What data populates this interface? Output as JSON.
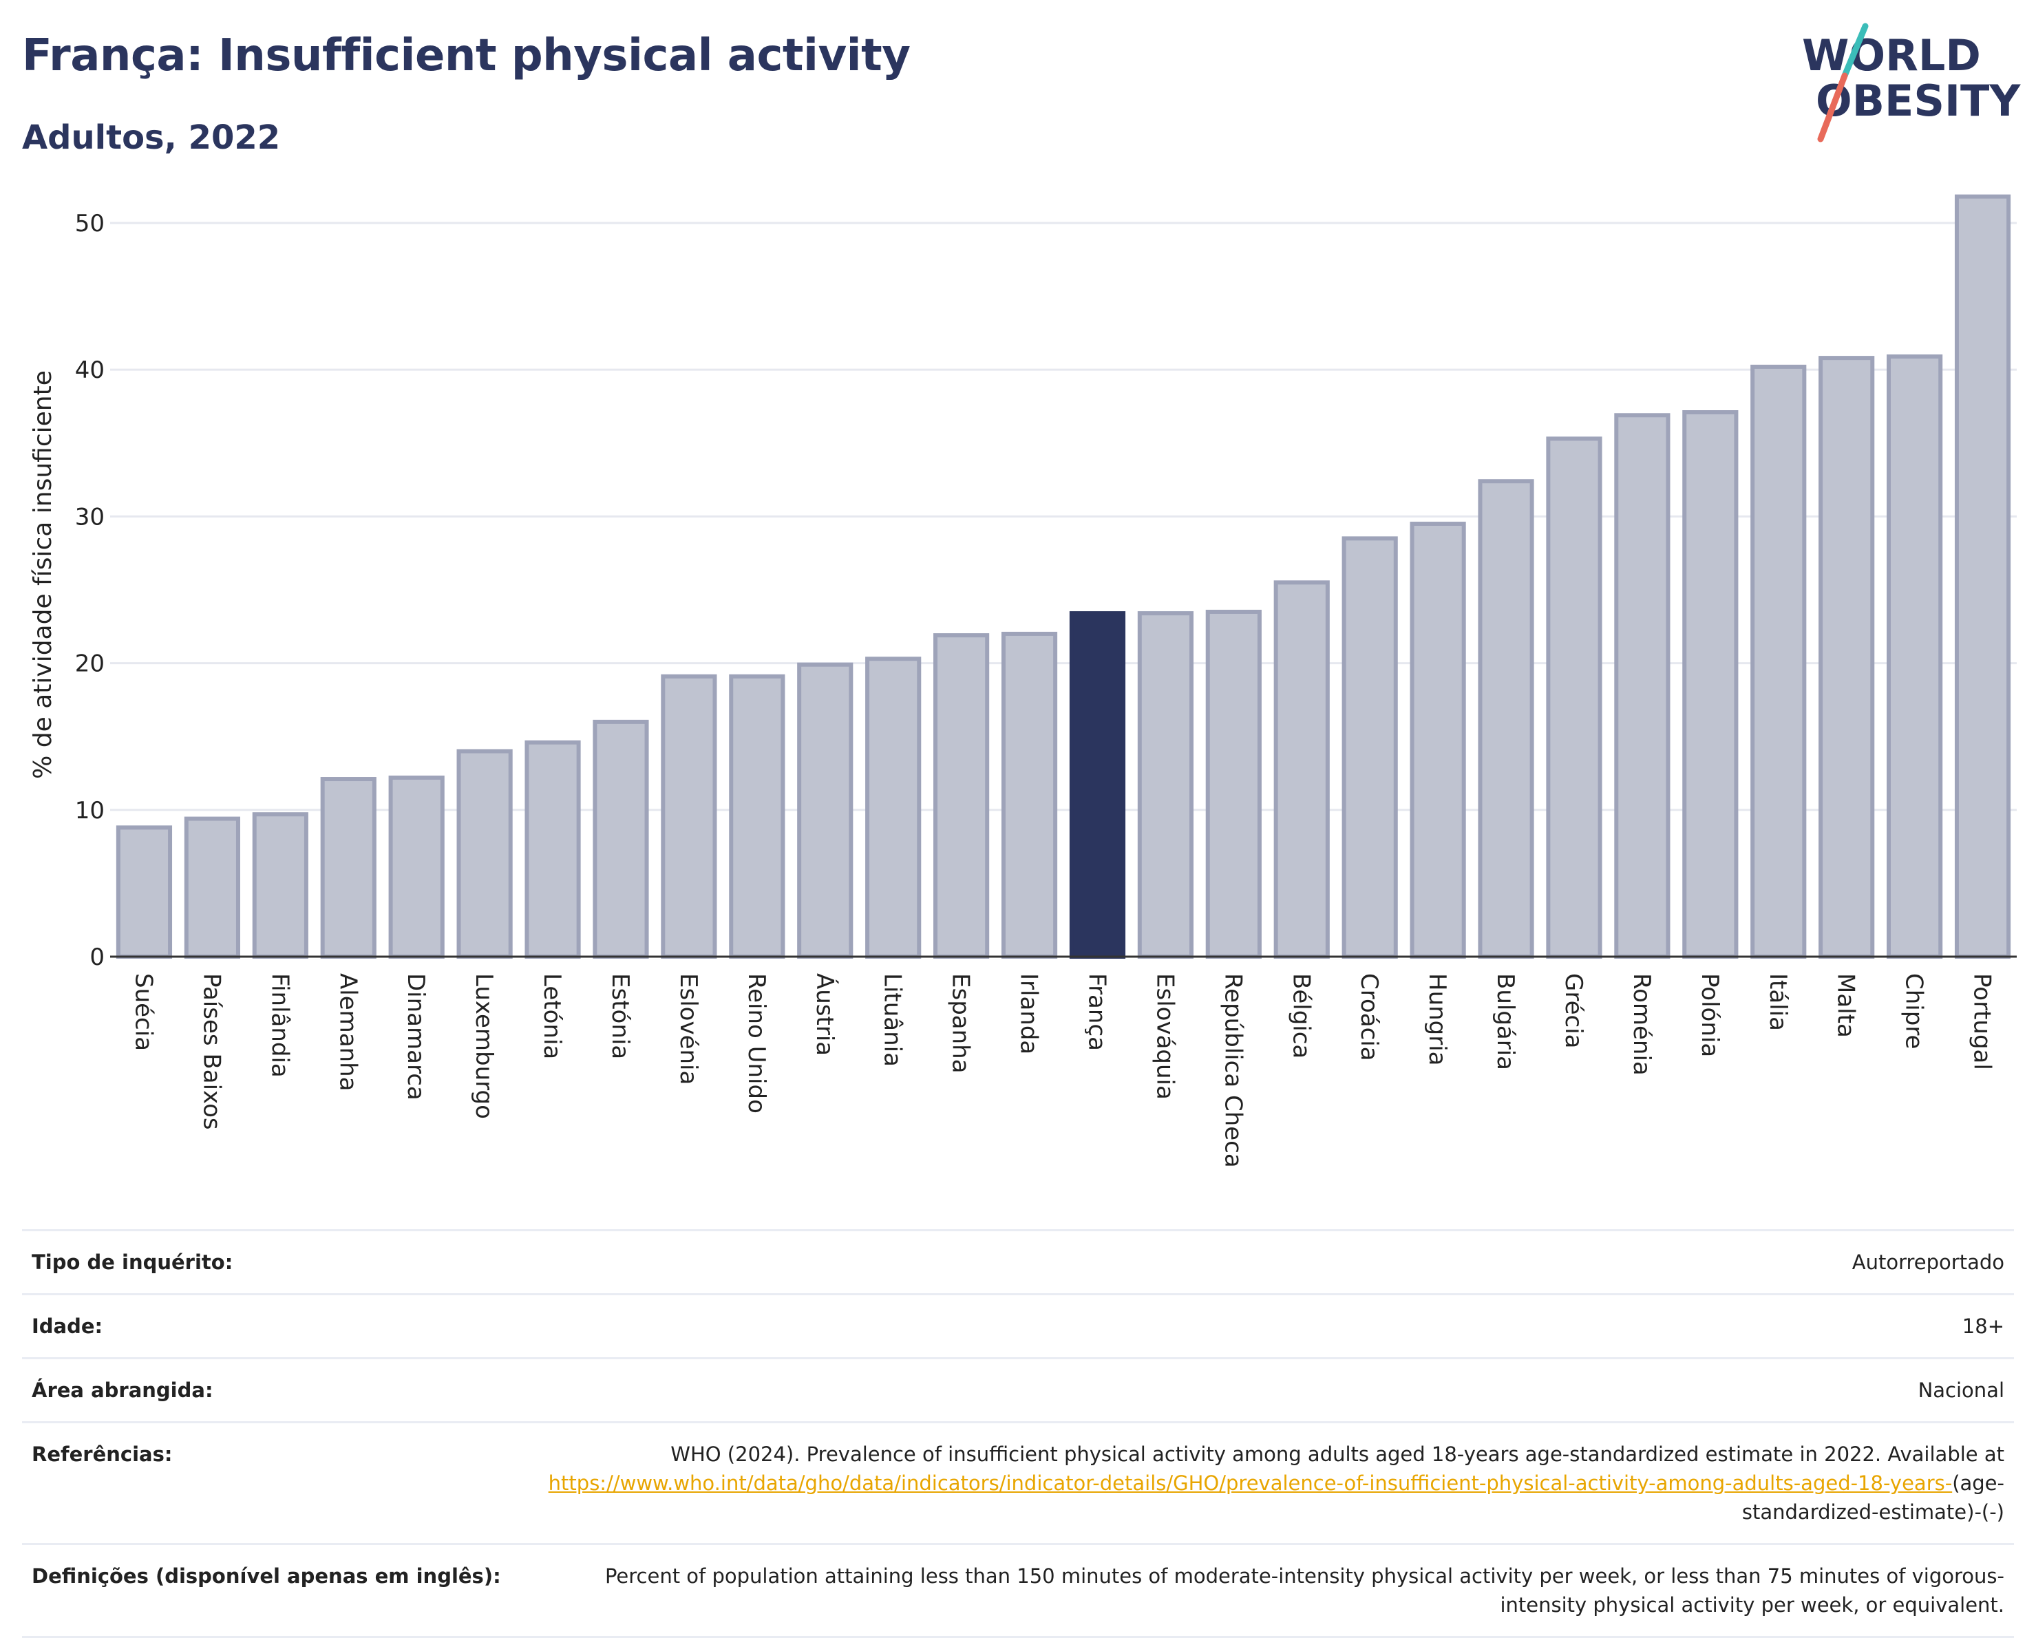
{
  "header": {
    "title": "França: Insufficient physical activity",
    "subtitle": "Adultos, 2022"
  },
  "logo": {
    "line1": "WORLD",
    "line2": "OBESITY"
  },
  "colors": {
    "highlight": "#2b355e",
    "bar": "#bfc3d0",
    "bar_border": "#9ea3b9",
    "link": "#e8a500"
  },
  "chart_data": {
    "type": "bar",
    "ylabel": "% de atividade física insuficiente",
    "ylim": [
      0,
      53
    ],
    "yticks": [
      0,
      10,
      20,
      30,
      40,
      50
    ],
    "grid": true,
    "highlight": "França",
    "categories": [
      "Suécia",
      "Países Baixos",
      "Finlândia",
      "Alemanha",
      "Dinamarca",
      "Luxemburgo",
      "Letónia",
      "Estónia",
      "Eslovénia",
      "Reino Unido",
      "Áustria",
      "Lituânia",
      "Espanha",
      "Irlanda",
      "França",
      "Eslováquia",
      "República Checa",
      "Bélgica",
      "Croácia",
      "Hungria",
      "Bulgária",
      "Grécia",
      "Roménia",
      "Polónia",
      "Itália",
      "Malta",
      "Chipre",
      "Portugal"
    ],
    "values": [
      8.8,
      9.4,
      9.7,
      12.1,
      12.2,
      14.0,
      14.6,
      16.0,
      19.1,
      19.1,
      19.9,
      20.3,
      21.9,
      22.0,
      23.4,
      23.4,
      23.5,
      25.5,
      28.5,
      29.5,
      32.4,
      35.3,
      36.9,
      37.1,
      40.2,
      40.8,
      40.9,
      51.8
    ]
  },
  "info": {
    "survey_label": "Tipo de inquérito:",
    "survey_value": "Autorreportado",
    "age_label": "Idade:",
    "age_value": "18+",
    "area_label": "Área abrangida:",
    "area_value": "Nacional",
    "ref_label": "Referências:",
    "ref_text": "WHO (2024). Prevalence of insufficient physical activity among adults aged 18-years age-standardized estimate in 2022. Available at",
    "ref_link": "https://www.who.int/data/gho/data/indicators/indicator-details/GHO/prevalence-of-insufficient-physical-activity-among-adults-aged-18-years-",
    "ref_suffix": "(age-standardized-estimate)-(-)",
    "def_label": "Definições (disponível apenas em inglês):",
    "def_text": "Percent of population attaining less than 150 minutes of moderate-intensity physical activity per week, or less than 75 minutes of vigorous-intensity physical activity per week, or equivalent."
  }
}
